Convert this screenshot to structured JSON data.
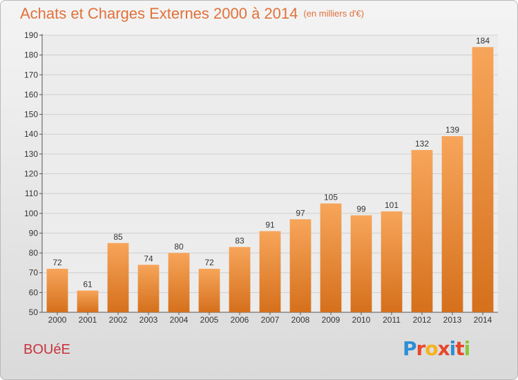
{
  "header": {
    "title": "Achats et Charges Externes 2000 à 2014",
    "unit": "(en milliers d'€)"
  },
  "commune": "BOUéE",
  "logo": {
    "text": "Proxiti",
    "letters": [
      {
        "ch": "P",
        "color": "#2c8fd6"
      },
      {
        "ch": "r",
        "color": "#e8462a"
      },
      {
        "ch": "o",
        "color": "#f6b21b"
      },
      {
        "ch": "x",
        "color": "#e8462a"
      },
      {
        "ch": "i",
        "color": "#2c8fd6"
      },
      {
        "ch": "t",
        "color": "#e8462a"
      },
      {
        "ch": "i",
        "color": "#8cc63f"
      }
    ]
  },
  "chart_data": {
    "type": "bar",
    "title": "Achats et Charges Externes 2000 à 2014",
    "subtitle": "(en milliers d'€)",
    "categories": [
      "2000",
      "2001",
      "2002",
      "2003",
      "2004",
      "2005",
      "2006",
      "2007",
      "2008",
      "2009",
      "2010",
      "2011",
      "2012",
      "2013",
      "2014"
    ],
    "values": [
      72,
      61,
      85,
      74,
      80,
      72,
      83,
      91,
      97,
      105,
      99,
      101,
      132,
      139,
      184
    ],
    "ylim": [
      50,
      190
    ],
    "yticks": [
      50,
      60,
      70,
      80,
      90,
      100,
      110,
      120,
      130,
      140,
      150,
      160,
      170,
      180,
      190
    ],
    "grid": true,
    "bar_color_top": "#f7a55a",
    "bar_color_bottom": "#d5701c",
    "xlabel": "",
    "ylabel": ""
  }
}
